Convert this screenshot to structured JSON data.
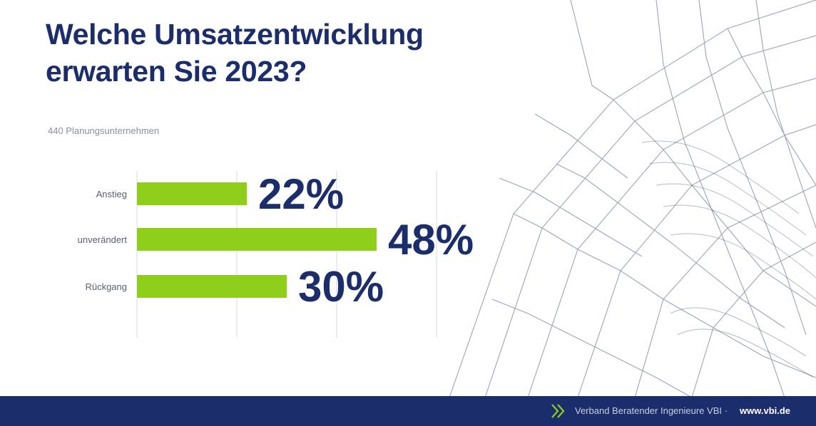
{
  "header": {
    "title_line1": "Welche Umsatzentwicklung",
    "title_line2": "erwarten Sie 2023?",
    "subtitle": "440 Planungsunternehmen"
  },
  "chart_data": {
    "type": "bar",
    "orientation": "horizontal",
    "categories": [
      "Anstieg",
      "unverändert",
      "Rückgang"
    ],
    "values": [
      22,
      48,
      30
    ],
    "value_labels": [
      "22%",
      "48%",
      "30%"
    ],
    "unit": "%",
    "xlim": [
      0,
      60
    ],
    "grid": true,
    "bar_color": "#8fce1b",
    "label_color": "#1b2e6b"
  },
  "footer": {
    "organization": "Verband Beratender Ingenieure VBI · ",
    "website": "www.vbi.de"
  },
  "colors": {
    "brand_navy": "#1b2e6b",
    "accent_green": "#8fce1b"
  }
}
